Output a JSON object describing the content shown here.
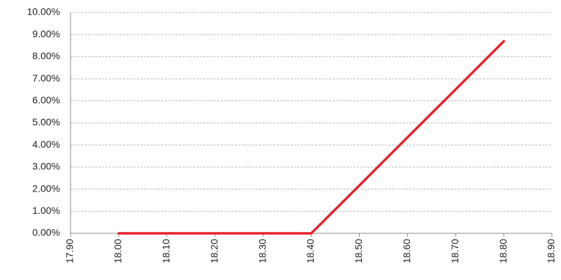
{
  "chart_data": {
    "type": "line",
    "x": [
      18.0,
      18.1,
      18.2,
      18.3,
      18.4,
      18.5,
      18.6,
      18.7,
      18.8
    ],
    "values": [
      0,
      0,
      0,
      0,
      0,
      2.17,
      4.35,
      6.52,
      8.7
    ],
    "color": "#e8202a",
    "xlim": [
      17.9,
      18.9
    ],
    "xticks": [
      {
        "value": 17.9,
        "label": "17.90"
      },
      {
        "value": 18.0,
        "label": "18.00"
      },
      {
        "value": 18.1,
        "label": "18.10"
      },
      {
        "value": 18.2,
        "label": "18.20"
      },
      {
        "value": 18.3,
        "label": "18.30"
      },
      {
        "value": 18.4,
        "label": "18.40"
      },
      {
        "value": 18.5,
        "label": "18.50"
      },
      {
        "value": 18.6,
        "label": "18.60"
      },
      {
        "value": 18.7,
        "label": "18.70"
      },
      {
        "value": 18.8,
        "label": "18.80"
      },
      {
        "value": 18.9,
        "label": "18.90"
      }
    ],
    "ylim": [
      0,
      10
    ],
    "yticks": [
      {
        "value": 0,
        "label": "0.00%"
      },
      {
        "value": 1,
        "label": "1.00%"
      },
      {
        "value": 2,
        "label": "2.00%"
      },
      {
        "value": 3,
        "label": "3.00%"
      },
      {
        "value": 4,
        "label": "4.00%"
      },
      {
        "value": 5,
        "label": "5.00%"
      },
      {
        "value": 6,
        "label": "6.00%"
      },
      {
        "value": 7,
        "label": "7.00%"
      },
      {
        "value": 8,
        "label": "8.00%"
      },
      {
        "value": 9,
        "label": "9.00%"
      },
      {
        "value": 10,
        "label": "10.00%"
      }
    ],
    "grid": true
  }
}
